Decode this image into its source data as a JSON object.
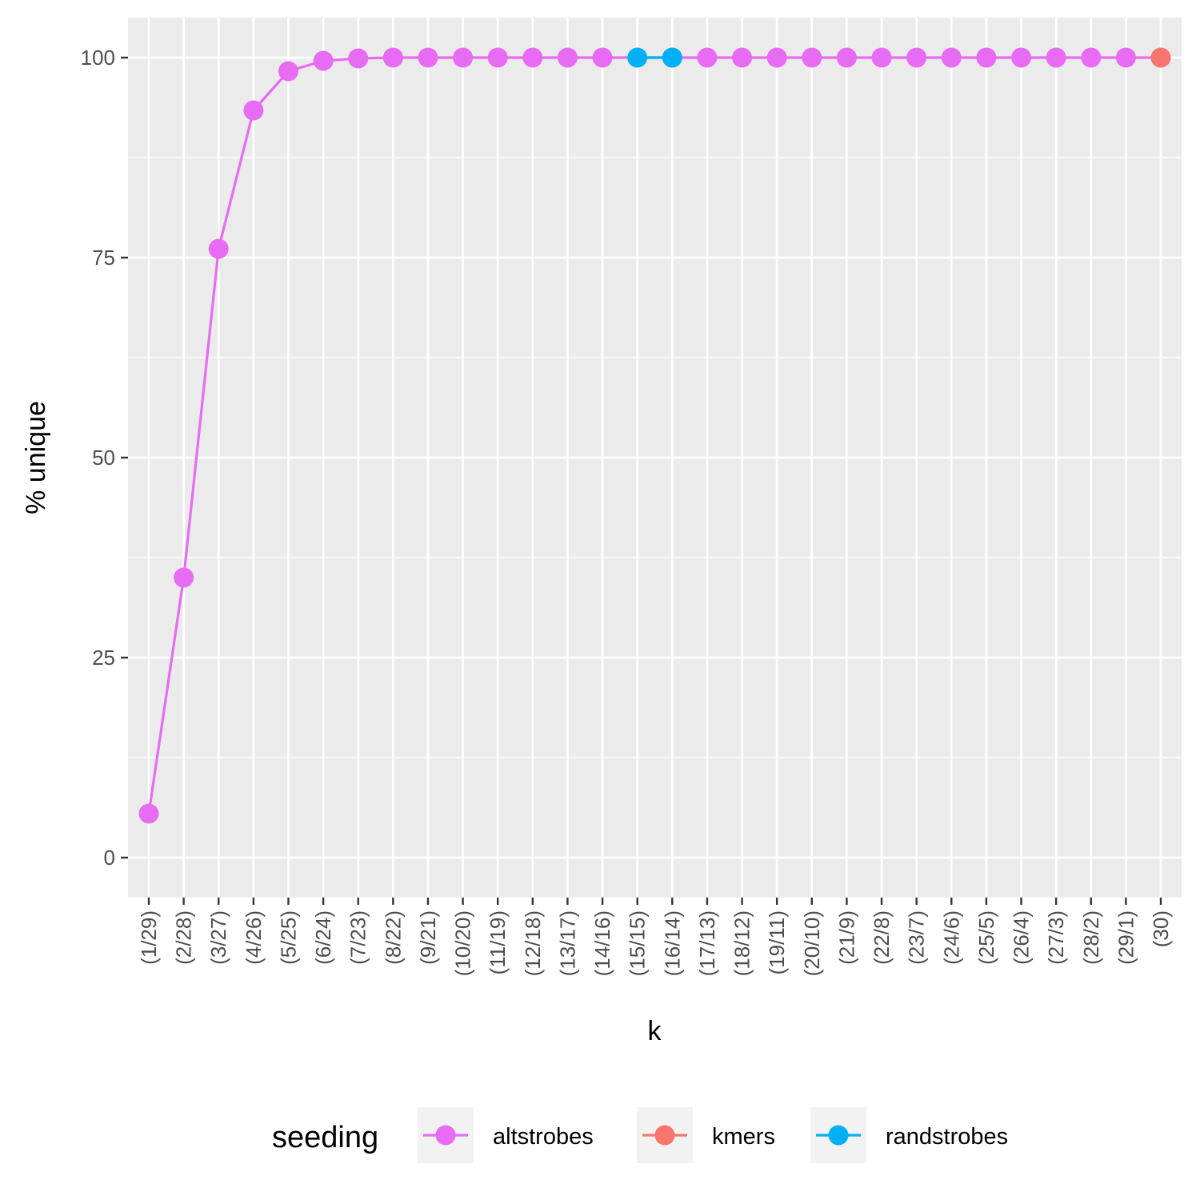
{
  "chart_data": {
    "type": "line",
    "xlabel": "k",
    "ylabel": "% unique",
    "ylim": [
      -5,
      105
    ],
    "yticks": [
      0,
      25,
      50,
      75,
      100
    ],
    "grid": true,
    "legend_position": "bottom",
    "categories": [
      "(1/29)",
      "(2/28)",
      "(3/27)",
      "(4/26)",
      "(5/25)",
      "(6/24)",
      "(7/23)",
      "(8/22)",
      "(9/21)",
      "(10/20)",
      "(11/19)",
      "(12/18)",
      "(13/17)",
      "(14/16)",
      "(15/15)",
      "(16/14)",
      "(17/13)",
      "(18/12)",
      "(19/11)",
      "(20/10)",
      "(21/9)",
      "(22/8)",
      "(23/7)",
      "(24/6)",
      "(25/5)",
      "(26/4)",
      "(27/3)",
      "(28/2)",
      "(29/1)",
      "(30)"
    ],
    "legend_title": "seeding",
    "series": [
      {
        "name": "altstrobes",
        "color": "#E76BF3",
        "points": [
          {
            "x": "(1/29)",
            "y": 5.5
          },
          {
            "x": "(2/28)",
            "y": 35.0
          },
          {
            "x": "(3/27)",
            "y": 76.1
          },
          {
            "x": "(4/26)",
            "y": 93.4
          },
          {
            "x": "(5/25)",
            "y": 98.3
          },
          {
            "x": "(6/24)",
            "y": 99.6
          },
          {
            "x": "(7/23)",
            "y": 99.9
          },
          {
            "x": "(8/22)",
            "y": 100
          },
          {
            "x": "(9/21)",
            "y": 100
          },
          {
            "x": "(10/20)",
            "y": 100
          },
          {
            "x": "(11/19)",
            "y": 100
          },
          {
            "x": "(12/18)",
            "y": 100
          },
          {
            "x": "(13/17)",
            "y": 100
          },
          {
            "x": "(14/16)",
            "y": 100
          },
          {
            "x": "(16/14)",
            "y": 100
          },
          {
            "x": "(17/13)",
            "y": 100
          },
          {
            "x": "(18/12)",
            "y": 100
          },
          {
            "x": "(19/11)",
            "y": 100
          },
          {
            "x": "(20/10)",
            "y": 100
          },
          {
            "x": "(21/9)",
            "y": 100
          },
          {
            "x": "(22/8)",
            "y": 100
          },
          {
            "x": "(23/7)",
            "y": 100
          },
          {
            "x": "(24/6)",
            "y": 100
          },
          {
            "x": "(25/5)",
            "y": 100
          },
          {
            "x": "(26/4)",
            "y": 100
          },
          {
            "x": "(27/3)",
            "y": 100
          },
          {
            "x": "(28/2)",
            "y": 100
          },
          {
            "x": "(29/1)",
            "y": 100
          },
          {
            "x": "(30)",
            "y": 100
          }
        ]
      },
      {
        "name": "kmers",
        "color": "#F8766D",
        "points": [
          {
            "x": "(30)",
            "y": 100
          }
        ]
      },
      {
        "name": "randstrobes",
        "color": "#00B0F6",
        "points": [
          {
            "x": "(15/15)",
            "y": 100
          },
          {
            "x": "(16/14)",
            "y": 100
          }
        ]
      }
    ]
  }
}
